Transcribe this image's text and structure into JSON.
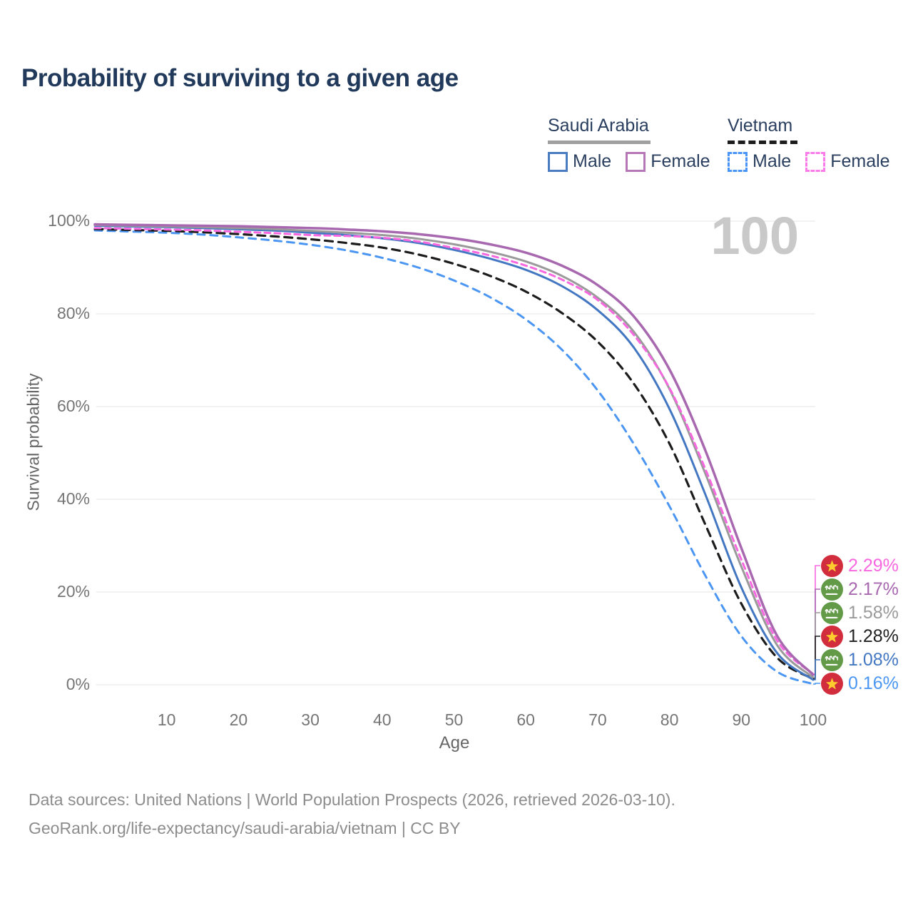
{
  "title": "Probability of surviving to a given age",
  "watermark_age": "100",
  "legend": {
    "saudi": {
      "country": "Saudi Arabia",
      "male": "Male",
      "female": "Female"
    },
    "vietnam": {
      "country": "Vietnam",
      "male": "Male",
      "female": "Female"
    }
  },
  "axes": {
    "y_title": "Survival probability",
    "x_title": "Age",
    "y_ticks": [
      "0%",
      "20%",
      "40%",
      "60%",
      "80%",
      "100%"
    ],
    "y_tick_values": [
      0,
      20,
      40,
      60,
      80,
      100
    ],
    "x_ticks": [
      "10",
      "20",
      "30",
      "40",
      "50",
      "60",
      "70",
      "80",
      "90",
      "100"
    ],
    "x_tick_values": [
      10,
      20,
      30,
      40,
      50,
      60,
      70,
      80,
      90,
      100
    ]
  },
  "footer": {
    "line1": "Data sources: United Nations | World Population Prospects (2026, retrieved 2026-03-10).",
    "line2": "GeoRank.org/life-expectancy/saudi-arabia/vietnam | CC BY"
  },
  "colors": {
    "title": "#21395a",
    "grid": "#ebebeb",
    "tick_text": "#757575",
    "watermark": "#c9c9c9",
    "vietnam_flag_red": "#d22d3d",
    "vietnam_star_gold": "#ffce2e",
    "saudi_flag_green": "#629a48"
  },
  "chart_data": {
    "type": "line",
    "title": "Probability of surviving to a given age",
    "xlabel": "Age",
    "ylabel": "Survival probability",
    "xlim": [
      0,
      100
    ],
    "ylim": [
      0,
      100
    ],
    "grid": "horizontal",
    "x": [
      0,
      5,
      10,
      15,
      20,
      25,
      30,
      35,
      40,
      45,
      50,
      55,
      60,
      65,
      70,
      75,
      80,
      85,
      90,
      95,
      100
    ],
    "series": [
      {
        "name": "Vietnam Male",
        "country": "Vietnam",
        "sex": "Male",
        "flag": "vn",
        "color": "#4b96f2",
        "dash": "10 8",
        "width": 3,
        "end_label": "0.16%",
        "values": [
          98.0,
          97.75,
          97.5,
          97.1,
          96.5,
          95.8,
          94.9,
          93.7,
          92.1,
          90.0,
          87.2,
          83.6,
          78.8,
          72.3,
          63.5,
          52.0,
          38.5,
          23.5,
          10.5,
          2.8,
          0.16
        ]
      },
      {
        "name": "Vietnam Both sexes",
        "country": "Vietnam",
        "sex": "Both",
        "flag": "vn",
        "color": "#1c1c1c",
        "dash": "11 8",
        "width": 3.2,
        "end_label": "1.28%",
        "values": [
          98.3,
          98.1,
          97.9,
          97.6,
          97.2,
          96.7,
          96.1,
          95.3,
          94.3,
          92.8,
          90.8,
          88.2,
          84.8,
          80.2,
          74.0,
          65.0,
          52.0,
          34.5,
          17.5,
          5.8,
          1.28
        ]
      },
      {
        "name": "Saudi Arabia Male",
        "country": "Saudi Arabia",
        "sex": "Male",
        "flag": "sa",
        "color": "#4377c2",
        "dash": null,
        "width": 3,
        "end_label": "1.08%",
        "values": [
          99.0,
          98.85,
          98.7,
          98.5,
          98.25,
          97.95,
          97.5,
          97.0,
          96.3,
          95.3,
          93.8,
          91.9,
          89.5,
          86.0,
          80.8,
          72.8,
          59.5,
          41.0,
          21.0,
          6.8,
          1.08
        ]
      },
      {
        "name": "Saudi Arabia Both sexes",
        "country": "Saudi Arabia",
        "sex": "Both",
        "flag": "sa",
        "color": "#9a9a9a",
        "dash": null,
        "width": 3,
        "end_label": "1.58%",
        "values": [
          99.15,
          99.0,
          98.85,
          98.7,
          98.5,
          98.25,
          97.9,
          97.5,
          97.0,
          96.2,
          95.0,
          93.4,
          91.3,
          88.2,
          83.5,
          76.2,
          63.8,
          45.5,
          25.5,
          8.5,
          1.58
        ]
      },
      {
        "name": "Vietnam Female",
        "country": "Vietnam",
        "sex": "Female",
        "flag": "vn",
        "color": "#f768e0",
        "dash": "8 6",
        "width": 3,
        "end_label": "2.29%",
        "values": [
          98.5,
          98.35,
          98.2,
          98.0,
          97.7,
          97.4,
          97.0,
          96.8,
          96.4,
          95.6,
          94.2,
          92.6,
          90.4,
          87.4,
          83.0,
          75.5,
          64.0,
          46.5,
          27.0,
          9.5,
          2.29
        ]
      },
      {
        "name": "Saudi Arabia Female",
        "country": "Saudi Arabia",
        "sex": "Female",
        "flag": "sa",
        "color": "#a868b0",
        "dash": null,
        "width": 3.5,
        "end_label": "2.17%",
        "values": [
          99.3,
          99.2,
          99.1,
          99.0,
          98.9,
          98.7,
          98.5,
          98.2,
          97.8,
          97.2,
          96.3,
          95.0,
          93.2,
          90.4,
          86.2,
          79.5,
          68.0,
          50.5,
          29.5,
          10.5,
          2.17
        ]
      }
    ]
  }
}
